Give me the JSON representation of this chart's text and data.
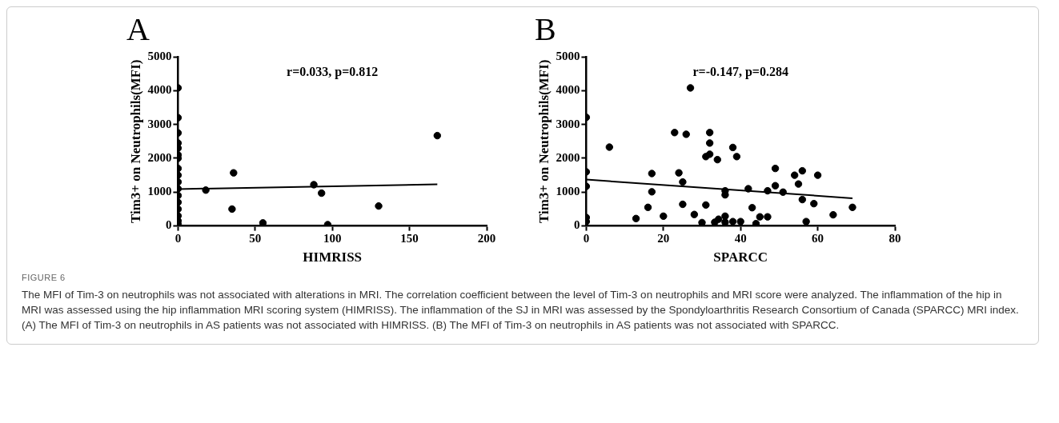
{
  "chart_data": [
    {
      "type": "scatter",
      "title": "A",
      "xlabel": "HIMRISS",
      "ylabel": "Tim3+ on Neutrophils(MFI)",
      "annotations": [
        "r=0.033, p=0.812"
      ],
      "xlim": [
        0,
        200
      ],
      "xticks": [
        0,
        50,
        100,
        150,
        200
      ],
      "ylim": [
        0,
        5000
      ],
      "yticks": [
        0,
        1000,
        2000,
        3000,
        4000,
        5000
      ],
      "grid": false,
      "legend": false,
      "marker": "circle",
      "series": [
        {
          "type": "scatter",
          "color": "#000000",
          "x": [
            0,
            0,
            0,
            0,
            0,
            0,
            0,
            0,
            0,
            0,
            0,
            0,
            0,
            0,
            0,
            0,
            0,
            18,
            36,
            35,
            55,
            88,
            93,
            97,
            130,
            168
          ],
          "values": [
            4080,
            3200,
            2750,
            2450,
            2300,
            2100,
            2000,
            1700,
            1500,
            1300,
            1100,
            900,
            700,
            500,
            300,
            150,
            50,
            1060,
            1570,
            500,
            90,
            1220,
            970,
            40,
            590,
            2670
          ]
        },
        {
          "type": "line",
          "color": "#000000",
          "marker": "none",
          "line_style": "solid",
          "x": [
            0,
            168
          ],
          "values": [
            1090,
            1230
          ]
        }
      ]
    },
    {
      "type": "scatter",
      "title": "B",
      "xlabel": "SPARCC",
      "ylabel": "Tim3+ on Neutrophils(MFI)",
      "annotations": [
        "r=-0.147, p=0.284"
      ],
      "xlim": [
        0,
        80
      ],
      "xticks": [
        0,
        20,
        40,
        60,
        80
      ],
      "ylim": [
        0,
        5000
      ],
      "yticks": [
        0,
        1000,
        2000,
        3000,
        4000,
        5000
      ],
      "grid": false,
      "legend": false,
      "marker": "circle",
      "series": [
        {
          "type": "scatter",
          "color": "#000000",
          "x": [
            0,
            0,
            0,
            0,
            0,
            6,
            12.9,
            16,
            17,
            17,
            20,
            22.9,
            24,
            25,
            25,
            25.9,
            27,
            28,
            30,
            31,
            31,
            32,
            32,
            32,
            34,
            33.3,
            34.3,
            36,
            36,
            36,
            36,
            38,
            38,
            39,
            40,
            42,
            43,
            44,
            45,
            47,
            47,
            49,
            49,
            51,
            54,
            55,
            56,
            56,
            57,
            59,
            60,
            64,
            69
          ],
          "values": [
            3210,
            1600,
            1170,
            250,
            130,
            2330,
            220,
            550,
            1550,
            1010,
            290,
            2760,
            1570,
            1300,
            640,
            2710,
            4080,
            340,
            100,
            620,
            2050,
            2760,
            2450,
            2120,
            1960,
            110,
            200,
            290,
            1040,
            920,
            110,
            2320,
            130,
            2050,
            130,
            1100,
            540,
            70,
            270,
            270,
            1040,
            1700,
            1190,
            1000,
            1500,
            1240,
            1630,
            780,
            130,
            660,
            1500,
            330,
            550
          ]
        },
        {
          "type": "line",
          "color": "#000000",
          "marker": "none",
          "line_style": "solid",
          "x": [
            0,
            69
          ],
          "values": [
            1370,
            820
          ]
        }
      ]
    },
    {
      "type": "other",
      "title": "FIGURE 6",
      "annotations": [
        "The MFI of Tim-3 on neutrophils was not associated with alterations in MRI. The correlation coefficient between the level of Tim-3 on neutrophils and MRI score were analyzed. The inflammation of the hip in MRI was assessed using the hip inflammation MRI scoring system (HIMRISS). The inflammation of the SJ in MRI was assessed by the Spondyloarthritis Research Consortium of Canada (SPARCC) MRI index. (A) The MFI of Tim-3 on neutrophils in AS patients was not associated with HIMRISS. (B) The MFI of Tim-3 on neutrophils in AS patients was not associated with SPARCC."
      ]
    }
  ]
}
